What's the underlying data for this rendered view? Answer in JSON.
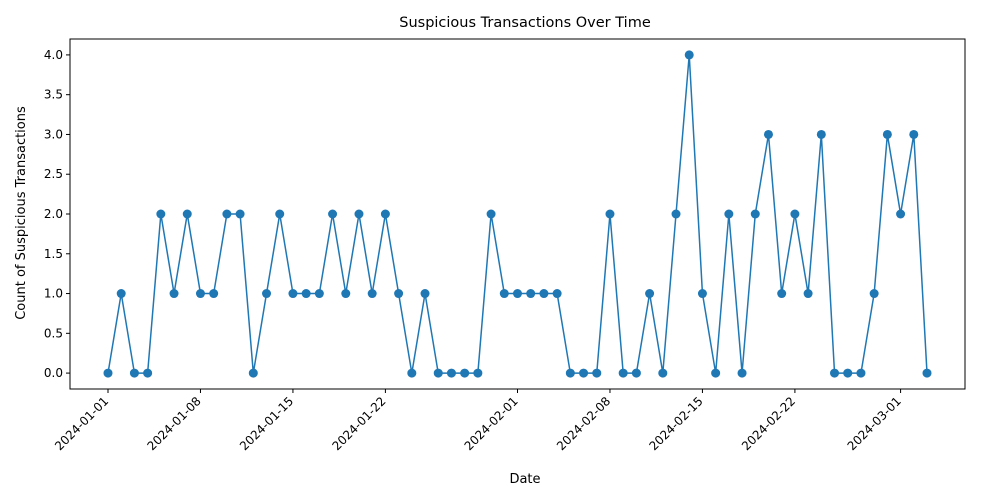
{
  "chart_data": {
    "type": "line",
    "title": "Suspicious Transactions Over Time",
    "xlabel": "Date",
    "ylabel": "Count of Suspicious Transactions",
    "x": [
      "2024-01-01",
      "2024-01-02",
      "2024-01-03",
      "2024-01-04",
      "2024-01-05",
      "2024-01-06",
      "2024-01-07",
      "2024-01-08",
      "2024-01-09",
      "2024-01-10",
      "2024-01-11",
      "2024-01-12",
      "2024-01-13",
      "2024-01-14",
      "2024-01-15",
      "2024-01-16",
      "2024-01-17",
      "2024-01-18",
      "2024-01-19",
      "2024-01-20",
      "2024-01-21",
      "2024-01-22",
      "2024-01-23",
      "2024-01-24",
      "2024-01-25",
      "2024-01-26",
      "2024-01-27",
      "2024-01-28",
      "2024-01-29",
      "2024-01-30",
      "2024-01-31",
      "2024-02-01",
      "2024-02-02",
      "2024-02-03",
      "2024-02-04",
      "2024-02-05",
      "2024-02-06",
      "2024-02-07",
      "2024-02-08",
      "2024-02-09",
      "2024-02-10",
      "2024-02-11",
      "2024-02-12",
      "2024-02-13",
      "2024-02-14",
      "2024-02-15",
      "2024-02-16",
      "2024-02-17",
      "2024-02-18",
      "2024-02-19",
      "2024-02-20",
      "2024-02-21",
      "2024-02-22",
      "2024-02-23",
      "2024-02-24",
      "2024-02-25",
      "2024-02-26",
      "2024-02-27",
      "2024-02-28",
      "2024-02-29",
      "2024-03-01",
      "2024-03-02",
      "2024-03-03"
    ],
    "series": [
      {
        "values": [
          0,
          1,
          0,
          0,
          2,
          1,
          2,
          1,
          1,
          2,
          2,
          0,
          1,
          2,
          1,
          1,
          1,
          2,
          1,
          2,
          1,
          2,
          1,
          0,
          1,
          0,
          0,
          0,
          0,
          2,
          1,
          1,
          1,
          1,
          1,
          0,
          0,
          0,
          2,
          0,
          0,
          1,
          0,
          2,
          4,
          1,
          0,
          2,
          0,
          2,
          3,
          1,
          2,
          1,
          3,
          0,
          0,
          0,
          1,
          3,
          2,
          3,
          0
        ],
        "color": "#1f77b4"
      }
    ],
    "xticks": [
      "2024-01-01",
      "2024-01-08",
      "2024-01-15",
      "2024-01-22",
      "2024-02-01",
      "2024-02-08",
      "2024-02-15",
      "2024-02-22",
      "2024-03-01"
    ],
    "yticks": [
      "0.0",
      "0.5",
      "1.0",
      "1.5",
      "2.0",
      "2.5",
      "3.0",
      "3.5",
      "4.0"
    ],
    "ylim": [
      -0.2,
      4.2
    ],
    "grid": false,
    "legend": "none"
  }
}
